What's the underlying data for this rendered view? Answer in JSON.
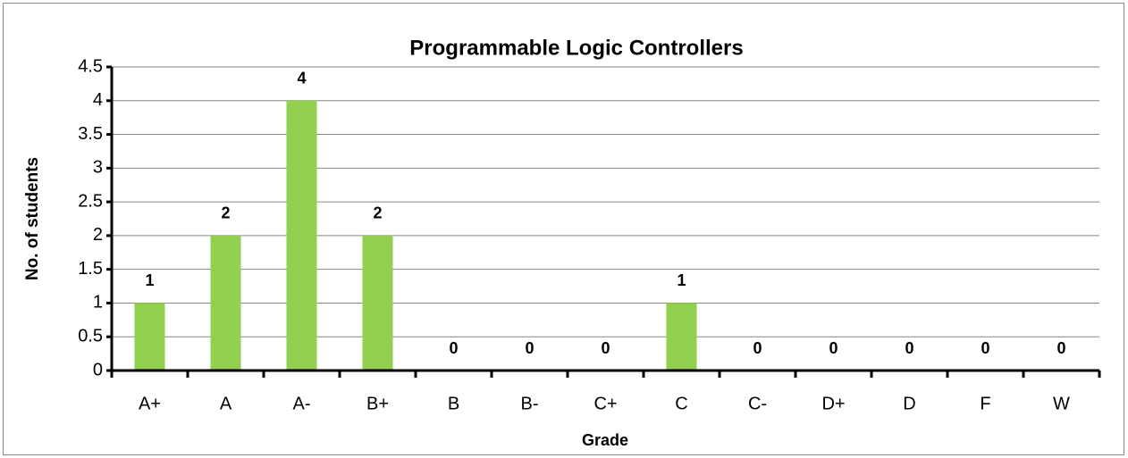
{
  "chart_data": {
    "type": "bar",
    "title": "Programmable Logic Controllers",
    "x_label": "Grade",
    "y_label": "No. of students",
    "categories": [
      "A+",
      "A",
      "A-",
      "B+",
      "B",
      "B-",
      "C+",
      "C",
      "C-",
      "D+",
      "D",
      "F",
      "W"
    ],
    "values": [
      1,
      2,
      4,
      2,
      0,
      0,
      0,
      1,
      0,
      0,
      0,
      0,
      0
    ],
    "color": "#92d050",
    "ylim": [
      0,
      4.5
    ],
    "yticks": [
      0,
      0.5,
      1,
      1.5,
      2,
      2.5,
      3,
      3.5,
      4,
      4.5
    ],
    "grid": true
  }
}
